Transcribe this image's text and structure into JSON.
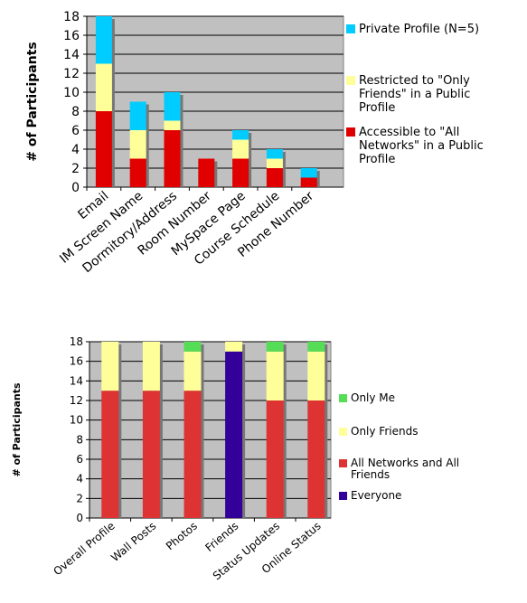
{
  "chart_data": [
    {
      "type": "bar",
      "stacked": true,
      "ylabel": "# of Participants",
      "ylim": [
        0,
        18
      ],
      "yticks": [
        "0",
        "2",
        "4",
        "6",
        "8",
        "10",
        "12",
        "14",
        "16",
        "18"
      ],
      "categories": [
        "Email",
        "IM Screen Name",
        "Dormitory/Address",
        "Room Number",
        "MySpace Page",
        "Course Schedule",
        "Phone Number"
      ],
      "series": [
        {
          "name": "Accessible to \"All Networks\" in a Public Profile",
          "color": "#e00000",
          "values": [
            8,
            3,
            6,
            3,
            3,
            2,
            1
          ]
        },
        {
          "name": "Restricted to \"Only Friends\" in a Public Profile",
          "color": "#ffff99",
          "values": [
            5,
            3,
            1,
            0,
            2,
            1,
            0
          ]
        },
        {
          "name": "Private Profile (N=5)",
          "color": "#00ccff",
          "values": [
            5,
            3,
            3,
            0,
            1,
            1,
            1
          ]
        }
      ],
      "legend_position": "right",
      "grid": true
    },
    {
      "type": "bar",
      "stacked": true,
      "ylabel": "# of Participants",
      "ylim": [
        0,
        18
      ],
      "yticks": [
        "0",
        "2",
        "4",
        "6",
        "8",
        "10",
        "12",
        "14",
        "16",
        "18"
      ],
      "categories": [
        "Overall Profile",
        "Wall Posts",
        "Photos",
        "Friends",
        "Status Updates",
        "Online Status"
      ],
      "series": [
        {
          "name": "Everyone",
          "color": "#330099",
          "values": [
            0,
            0,
            0,
            17,
            0,
            0
          ]
        },
        {
          "name": "All Networks and All Friends",
          "color": "#dd3333",
          "values": [
            13,
            13,
            13,
            0,
            12,
            12
          ]
        },
        {
          "name": "Only Friends",
          "color": "#ffff99",
          "values": [
            5,
            5,
            4,
            1,
            5,
            5
          ]
        },
        {
          "name": "Only Me",
          "color": "#55dd55",
          "values": [
            0,
            0,
            1,
            0,
            1,
            1
          ]
        }
      ],
      "legend_position": "right",
      "grid": true
    }
  ]
}
